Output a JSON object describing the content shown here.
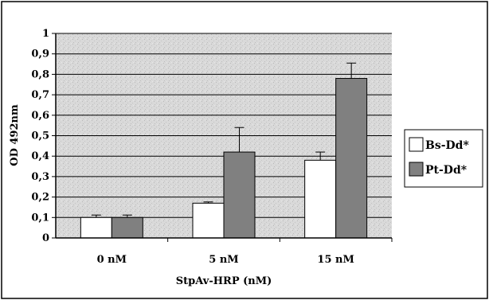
{
  "chart_data": {
    "type": "bar",
    "title": "",
    "xlabel": "StpAv-HRP (nM)",
    "ylabel": "OD 492nm",
    "categories": [
      "0 nM",
      "5 nM",
      "15 nM"
    ],
    "ylim": [
      0,
      1
    ],
    "yticks": [
      "0",
      "0,1",
      "0,2",
      "0,3",
      "0,4",
      "0,5",
      "0,6",
      "0,7",
      "0,8",
      "0,9",
      "1"
    ],
    "grid": true,
    "legend_position": "right",
    "series": [
      {
        "name": "Bs-Dd*",
        "values": [
          0.1,
          0.17,
          0.38
        ],
        "errors": [
          0.012,
          0.006,
          0.04
        ],
        "color": "#ffffff"
      },
      {
        "name": "Pt-Dd*",
        "values": [
          0.1,
          0.42,
          0.78
        ],
        "errors": [
          0.012,
          0.12,
          0.075
        ],
        "color": "#808080"
      }
    ],
    "plot_background": "#d9d9d9"
  }
}
